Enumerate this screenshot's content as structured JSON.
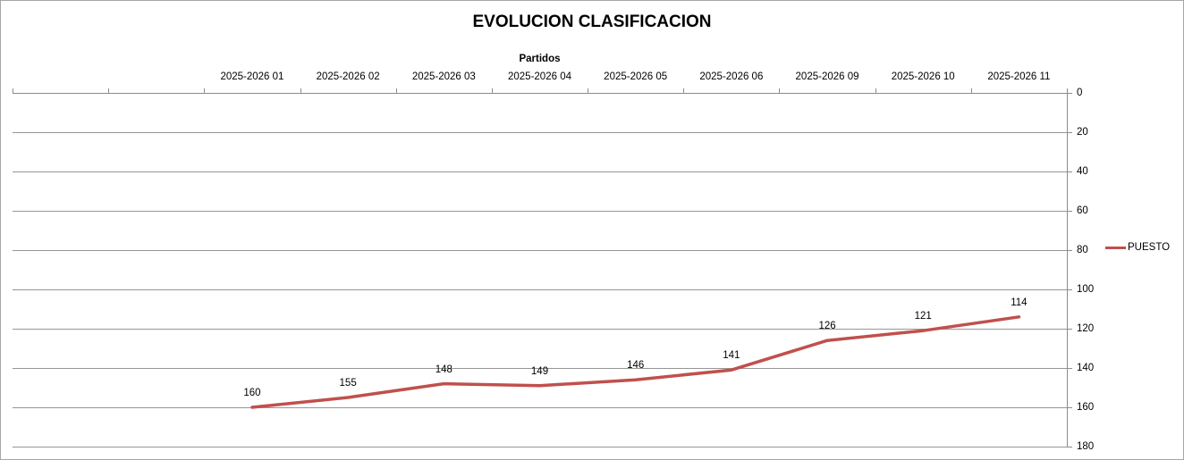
{
  "chart_data": {
    "type": "line",
    "title": "EVOLUCION CLASIFICACION",
    "xlabel": "Partidos",
    "ylabel": "",
    "categories": [
      "2025-2026 01",
      "2025-2026 02",
      "2025-2026 03",
      "2025-2026 04",
      "2025-2026 05",
      "2025-2026 06",
      "2025-2026 09",
      "2025-2026 10",
      "2025-2026 11"
    ],
    "series": [
      {
        "name": "PUESTO",
        "values": [
          160,
          155,
          148,
          149,
          146,
          141,
          126,
          121,
          114
        ]
      }
    ],
    "ylim": [
      0,
      180
    ],
    "y_ticks": [
      0,
      20,
      40,
      60,
      80,
      100,
      120,
      140,
      160,
      180
    ],
    "y_axis_side": "right",
    "y_inverted": true,
    "x_axis_position": "top",
    "grid": true,
    "data_labels": true,
    "legend_position": "right",
    "total_slots": 11,
    "empty_leading_slots": 2
  },
  "colors": {
    "line": "#C0504D",
    "grid": "#969696",
    "axis": "#8c8c8c",
    "text": "#000000",
    "border": "#a6a6a6",
    "background": "#ffffff"
  }
}
